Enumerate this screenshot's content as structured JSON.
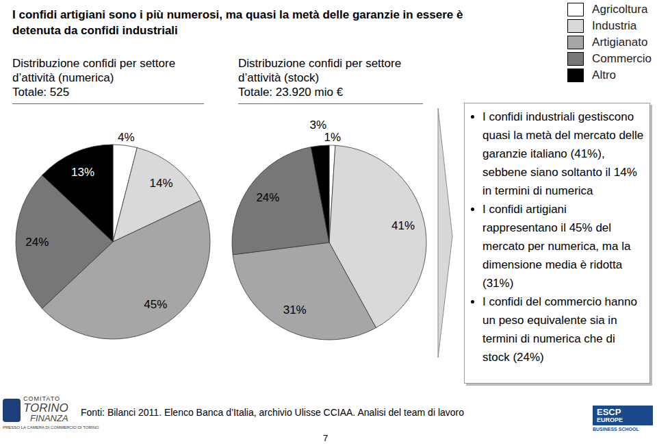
{
  "title": "I confidi artigiani sono i più numerosi, ma quasi la metà delle garanzie in essere è detenuta da confidi industriali",
  "chart_data": [
    {
      "type": "pie",
      "title": "Distribuzione confidi per settore d’attività (numerica)",
      "subtitle": "Totale: 525",
      "categories": [
        "Agricoltura",
        "Industria",
        "Artigianato",
        "Commercio",
        "Altro"
      ],
      "values": [
        4,
        14,
        45,
        24,
        13
      ],
      "value_labels": [
        "4%",
        "14%",
        "45%",
        "24%",
        "13%"
      ],
      "colors": [
        "#ffffff",
        "#d9d9d9",
        "#a6a6a6",
        "#777777",
        "#000000"
      ],
      "data_labels": true,
      "legend": "upper right"
    },
    {
      "type": "pie",
      "title": "Distribuzione confidi per settore d’attività (stock)",
      "subtitle": "Totale: 23.920 mio €",
      "categories": [
        "Agricoltura",
        "Industria",
        "Artigianato",
        "Commercio",
        "Altro"
      ],
      "values": [
        1,
        41,
        31,
        24,
        3
      ],
      "value_labels": [
        "1%",
        "41%",
        "31%",
        "24%",
        "3%"
      ],
      "colors": [
        "#ffffff",
        "#d9d9d9",
        "#a6a6a6",
        "#777777",
        "#000000"
      ],
      "data_labels": true
    }
  ],
  "notes": [
    "I confidi industriali gestiscono quasi la metà del mercato delle garanzie italiano (41%), sebbene siano soltanto il 14% in termini di numerica",
    "I confidi artigiani rappresentano il 45% del mercato per numerica, ma la dimensione media è ridotta (31%)",
    "I confidi del commercio hanno un peso equivalente sia in termini di numerica che di stock (24%)"
  ],
  "source": "Fonti: Bilanci 2011. Elenco Banca d’Italia, archivio Ulisse CCIAA. Analisi del team di lavoro",
  "page_number": "7",
  "logos": {
    "left": [
      "COMITATO",
      "TORINO",
      "FINANZA",
      "PRESSO LA CAMERA DI COMMERCIO DI TORINO"
    ],
    "right": [
      "ESCP",
      "EUROPE",
      "BUSINESS SCHOOL"
    ]
  }
}
